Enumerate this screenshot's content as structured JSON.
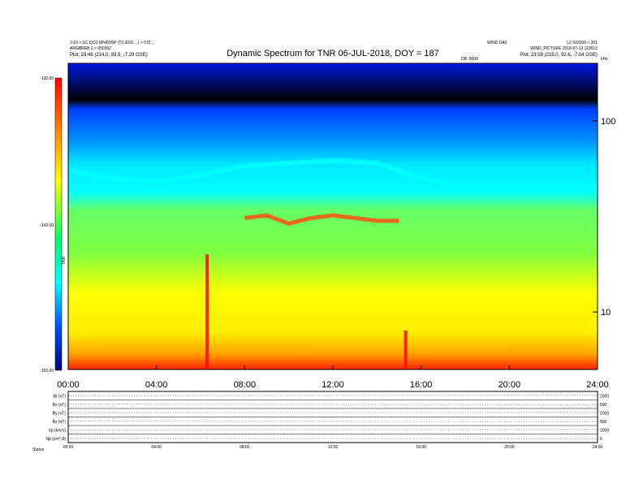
{
  "header": {
    "left_line1": "1:10 > SC:QC0:SP4D05P (TC:EC0 ...) > 070 ...",
    "left_line2": "ARGBREB 2 > 050302",
    "left_line3": "Plot:   23:46 (214.0, 93.5, -7.29 GSE)",
    "center_right": "WIND DA0",
    "right_line1": "L2 SOO00 > 301",
    "right_line2": "WIND_PICTURE 2018-07-13 110013",
    "right_line3": "Plot:   23:59 (215.0, 92.6, -7.04 GSE)",
    "small_label": "DB: 0000",
    "corner_label": "kHz"
  },
  "chart_data": {
    "type": "heatmap",
    "title": "Dynamic Spectrum for TNR 06-JUL-2018, DOY = 187",
    "xlabel": "",
    "ylabel": "kHz",
    "x_range": [
      "00:00",
      "24:00"
    ],
    "x_ticks": [
      "00:00",
      "04:00",
      "08:00",
      "12:00",
      "16:00",
      "20:00",
      "24:00"
    ],
    "y_scale": "log",
    "y_range": [
      5,
      200
    ],
    "y_ticks": [
      "10",
      "100"
    ],
    "colorbar": {
      "label": "TNR",
      "range": [
        -155.0,
        -130.0
      ],
      "ticks": [
        "-130.00",
        "-142.50",
        "-155.00"
      ],
      "colors": [
        "#000080",
        "#0000ff",
        "#00ffff",
        "#00ff66",
        "#ffff00",
        "#ff8000",
        "#ff0000"
      ]
    },
    "features": [
      {
        "name": "noise floor boundary (cyan/green)",
        "x_hours": [
          0,
          2,
          4,
          6,
          8,
          10,
          12,
          14,
          16,
          18,
          20,
          22,
          24
        ],
        "y_khz": [
          55,
          50,
          48,
          52,
          58,
          60,
          62,
          60,
          50,
          45,
          45,
          45,
          45
        ]
      },
      {
        "name": "emission band (orange)",
        "x_hours": [
          8,
          9,
          10,
          11,
          12,
          13,
          14,
          15
        ],
        "y_khz": [
          31,
          32,
          29,
          31,
          32,
          31,
          30,
          30
        ]
      },
      {
        "name": "impulsive bursts (red)",
        "x_hours": [
          6.3,
          15.3
        ],
        "y_khz": [
          20,
          8
        ]
      }
    ]
  },
  "bottom_panels": {
    "labels": [
      "Bt (nT)",
      "Bx (nT)",
      "By (nT)",
      "Bz (nT)",
      "Vp (km/s)",
      "Np (cm^-3)"
    ],
    "right_ticks": [
      "2000",
      "500",
      "2000",
      "500",
      "2000",
      "0"
    ],
    "x_ticks": [
      "00:00",
      "04:00",
      "08:00",
      "12:00",
      "16:00",
      "20:00",
      "24:00"
    ],
    "footer_label": "Status"
  }
}
